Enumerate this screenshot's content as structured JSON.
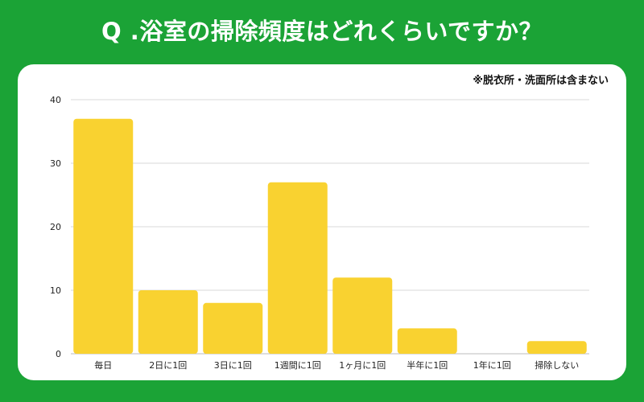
{
  "header": {
    "title": "Q .浴室の掃除頻度はどれくらいですか？"
  },
  "panel": {
    "note": "※脱衣所・洗面所は含まない"
  },
  "colors": {
    "background": "#1ba336",
    "bar": "#f9d230",
    "grid": "#d9d9d9"
  },
  "chart_data": {
    "type": "bar",
    "title": "",
    "xlabel": "",
    "ylabel": "",
    "categories": [
      "毎日",
      "2日に1回",
      "3日に1回",
      "1週間に1回",
      "1ヶ月に1回",
      "半年に1回",
      "1年に1回",
      "掃除しない"
    ],
    "values": [
      37,
      10,
      8,
      27,
      12,
      4,
      0,
      2
    ],
    "ylim": [
      0,
      40
    ],
    "yticks": [
      0,
      10,
      20,
      30,
      40
    ],
    "grid": true,
    "legend": "none"
  }
}
